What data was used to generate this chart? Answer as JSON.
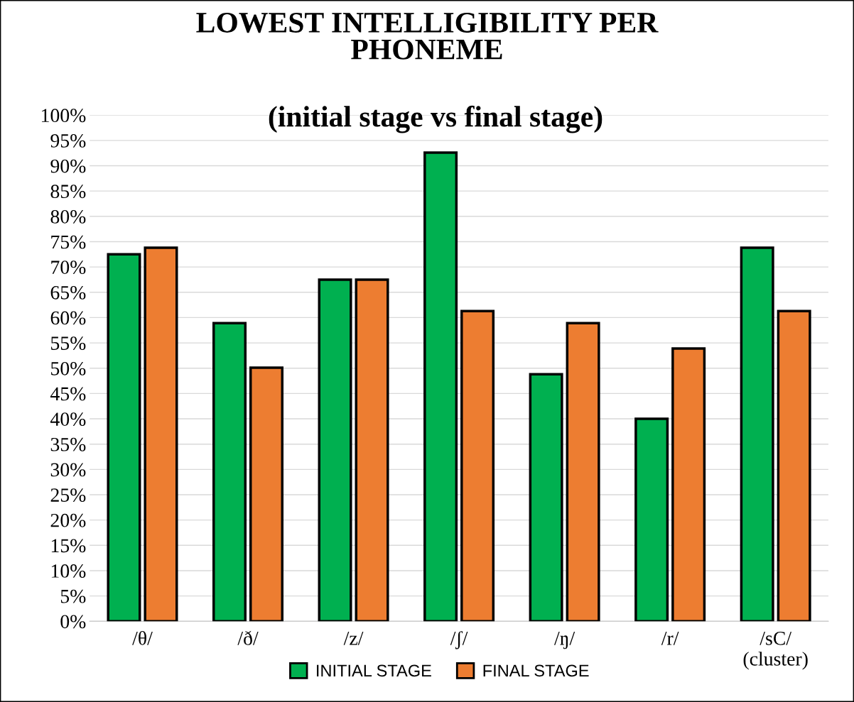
{
  "chart_data": {
    "type": "bar",
    "title": "LOWEST INTELLIGIBILITY PER\nPHONEME",
    "subtitle": "(initial stage vs final stage)",
    "categories": [
      "/θ/",
      "/ð/",
      "/z/",
      "/ʃ/",
      "/ŋ/",
      "/r/",
      "/sC/\n(cluster)"
    ],
    "series": [
      {
        "name": "INITIAL STAGE",
        "color": "#00b050",
        "values": [
          72.5,
          58.9,
          67.5,
          92.6,
          48.8,
          40.0,
          73.8
        ]
      },
      {
        "name": "FINAL STAGE",
        "color": "#ed7d31",
        "values": [
          73.8,
          50.1,
          67.5,
          61.3,
          58.9,
          53.9,
          61.3
        ]
      }
    ],
    "ylim": [
      0,
      100
    ],
    "yticks": [
      {
        "value": 0,
        "label": "0%"
      },
      {
        "value": 5,
        "label": "5%"
      },
      {
        "value": 10,
        "label": "10%"
      },
      {
        "value": 15,
        "label": "15%"
      },
      {
        "value": 20,
        "label": "20%"
      },
      {
        "value": 25,
        "label": "25%"
      },
      {
        "value": 30,
        "label": "30%"
      },
      {
        "value": 35,
        "label": "35%"
      },
      {
        "value": 40,
        "label": "40%"
      },
      {
        "value": 45,
        "label": "45%"
      },
      {
        "value": 50,
        "label": "50%"
      },
      {
        "value": 55,
        "label": "55%"
      },
      {
        "value": 60,
        "label": "60%"
      },
      {
        "value": 65,
        "label": "65%"
      },
      {
        "value": 70,
        "label": "70%"
      },
      {
        "value": 75,
        "label": "75%"
      },
      {
        "value": 80,
        "label": "80%"
      },
      {
        "value": 85,
        "label": "85%"
      },
      {
        "value": 90,
        "label": "90%"
      },
      {
        "value": 95,
        "label": "95%"
      },
      {
        "value": 100,
        "label": "100%"
      }
    ],
    "grid": "y",
    "legend": "bottom"
  }
}
